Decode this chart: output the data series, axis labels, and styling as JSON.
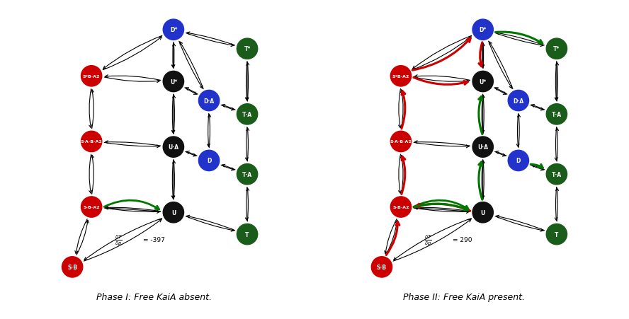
{
  "panels": [
    {
      "title": "Phase I: Free KaiA absent.",
      "sensitivity_value": "= -397"
    },
    {
      "title": "Phase II: Free KaiA present.",
      "sensitivity_value": "= 290"
    }
  ],
  "node_colors": {
    "red": "#cc0000",
    "black": "#111111",
    "blue": "#2233cc",
    "dark_green": "#1a5c1a"
  },
  "background": "#ffffff"
}
